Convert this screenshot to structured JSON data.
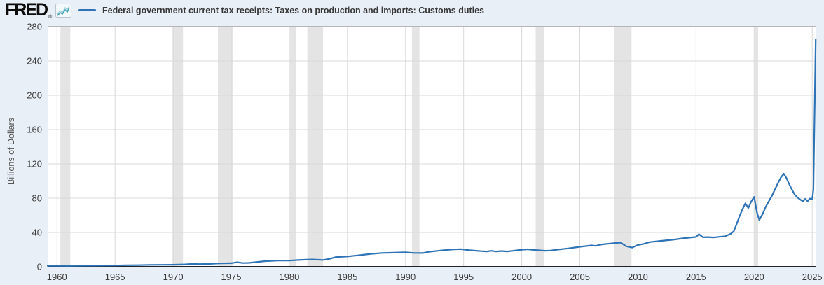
{
  "header": {
    "logo_text": "FRED",
    "registered_mark": "®",
    "sparkline_icon": "fred-sparkline-icon",
    "series_legend": {
      "marker": "line-dash",
      "label": "Federal government current tax receipts: Taxes on production and imports: Customs duties",
      "color": "#2d73b5"
    }
  },
  "chart_data": {
    "type": "line",
    "title": "Federal government current tax receipts: Taxes on production and imports: Customs duties",
    "xlabel": "",
    "ylabel": "Billions of Dollars",
    "xlim": [
      1959.2,
      2025.35
    ],
    "ylim": [
      0,
      280
    ],
    "x_ticks": [
      1960,
      1965,
      1970,
      1975,
      1980,
      1985,
      1990,
      1995,
      2000,
      2005,
      2010,
      2015,
      2020,
      2025
    ],
    "y_ticks": [
      0,
      40,
      80,
      120,
      160,
      200,
      240,
      280
    ],
    "grid": true,
    "legend_position": "top-left",
    "recession_bands": [
      [
        1960.3,
        1961.15
      ],
      [
        1969.95,
        1970.85
      ],
      [
        1973.85,
        1975.15
      ],
      [
        1980.05,
        1980.55
      ],
      [
        1981.55,
        1982.9
      ],
      [
        1990.55,
        1991.2
      ],
      [
        2001.2,
        2001.9
      ],
      [
        2007.95,
        2009.45
      ],
      [
        2020.1,
        2020.35
      ]
    ],
    "series": [
      {
        "name": "Federal government current tax receipts: Taxes on production and imports: Customs duties",
        "color": "#2d73b5",
        "units": "Billions of Dollars",
        "points": [
          [
            1959.2,
            1.1
          ],
          [
            1960,
            1.1
          ],
          [
            1961,
            1.0
          ],
          [
            1962,
            1.2
          ],
          [
            1963,
            1.3
          ],
          [
            1964,
            1.4
          ],
          [
            1965,
            1.5
          ],
          [
            1966,
            1.8
          ],
          [
            1967,
            1.9
          ],
          [
            1968,
            2.2
          ],
          [
            1969,
            2.3
          ],
          [
            1970,
            2.4
          ],
          [
            1970.5,
            2.5
          ],
          [
            1971,
            2.8
          ],
          [
            1971.75,
            3.4
          ],
          [
            1972.25,
            3.1
          ],
          [
            1973,
            3.3
          ],
          [
            1974,
            3.9
          ],
          [
            1975,
            4.2
          ],
          [
            1975.5,
            5.2
          ],
          [
            1976,
            4.3
          ],
          [
            1976.5,
            4.5
          ],
          [
            1977,
            5.2
          ],
          [
            1978,
            6.6
          ],
          [
            1979,
            7.3
          ],
          [
            1980,
            7.2
          ],
          [
            1980.75,
            7.8
          ],
          [
            1981.5,
            8.3
          ],
          [
            1982,
            8.5
          ],
          [
            1982.9,
            7.9
          ],
          [
            1983.5,
            9.3
          ],
          [
            1984,
            11.3
          ],
          [
            1985,
            12.0
          ],
          [
            1986,
            13.4
          ],
          [
            1987,
            15.0
          ],
          [
            1988,
            16.1
          ],
          [
            1989,
            16.4
          ],
          [
            1990,
            16.8
          ],
          [
            1990.75,
            16.1
          ],
          [
            1991.5,
            16.0
          ],
          [
            1992,
            17.5
          ],
          [
            1993,
            18.9
          ],
          [
            1994,
            20.2
          ],
          [
            1994.75,
            20.6
          ],
          [
            1995.5,
            19.3
          ],
          [
            1996,
            18.8
          ],
          [
            1996.5,
            18.2
          ],
          [
            1997,
            17.9
          ],
          [
            1997.4,
            18.6
          ],
          [
            1997.8,
            17.8
          ],
          [
            1998.25,
            18.4
          ],
          [
            1998.75,
            17.9
          ],
          [
            1999.25,
            18.6
          ],
          [
            2000,
            19.9
          ],
          [
            2000.5,
            20.4
          ],
          [
            2001,
            19.7
          ],
          [
            2001.5,
            19.2
          ],
          [
            2002,
            18.7
          ],
          [
            2002.5,
            18.9
          ],
          [
            2003,
            19.9
          ],
          [
            2004,
            21.4
          ],
          [
            2005,
            23.3
          ],
          [
            2006,
            24.9
          ],
          [
            2006.4,
            24.3
          ],
          [
            2006.7,
            25.6
          ],
          [
            2007,
            26.2
          ],
          [
            2008,
            27.6
          ],
          [
            2008.5,
            28.2
          ],
          [
            2009,
            23.8
          ],
          [
            2009.5,
            22.4
          ],
          [
            2010,
            25.4
          ],
          [
            2010.5,
            26.7
          ],
          [
            2011,
            28.7
          ],
          [
            2012,
            30.2
          ],
          [
            2013,
            31.5
          ],
          [
            2014,
            33.4
          ],
          [
            2015,
            34.8
          ],
          [
            2015.25,
            38.0
          ],
          [
            2015.6,
            34.4
          ],
          [
            2016,
            34.6
          ],
          [
            2016.5,
            34.2
          ],
          [
            2017,
            34.9
          ],
          [
            2017.5,
            35.5
          ],
          [
            2018,
            38.5
          ],
          [
            2018.25,
            41.5
          ],
          [
            2018.5,
            50.0
          ],
          [
            2018.75,
            59.0
          ],
          [
            2019,
            67.0
          ],
          [
            2019.25,
            74.0
          ],
          [
            2019.5,
            68.5
          ],
          [
            2019.75,
            76.0
          ],
          [
            2020,
            81.5
          ],
          [
            2020.25,
            63.0
          ],
          [
            2020.45,
            54.5
          ],
          [
            2020.75,
            62.0
          ],
          [
            2021,
            70.0
          ],
          [
            2021.25,
            76.0
          ],
          [
            2021.5,
            82.0
          ],
          [
            2021.75,
            89.0
          ],
          [
            2022,
            96.0
          ],
          [
            2022.3,
            104.0
          ],
          [
            2022.55,
            108.5
          ],
          [
            2022.8,
            103.0
          ],
          [
            2023,
            97.0
          ],
          [
            2023.25,
            90.0
          ],
          [
            2023.5,
            84.0
          ],
          [
            2023.75,
            80.5
          ],
          [
            2024,
            78.0
          ],
          [
            2024.2,
            76.5
          ],
          [
            2024.4,
            79.0
          ],
          [
            2024.6,
            76.5
          ],
          [
            2024.8,
            79.5
          ],
          [
            2025,
            78.5
          ],
          [
            2025.1,
            90.0
          ],
          [
            2025.3,
            265.0
          ]
        ]
      }
    ],
    "colors": {
      "background": "#e9eff7",
      "plot_background": "#ffffff",
      "gridline": "#d9d9d9",
      "plot_border": "#b6b6b6",
      "recession_band": "#e4e4e4",
      "axis_line": "#20242c",
      "tick_text": "#3c3c3c",
      "series_line": "#2d73b5",
      "logo_text": "#0d0d0d",
      "icon_teal": "#46a5b8"
    }
  }
}
